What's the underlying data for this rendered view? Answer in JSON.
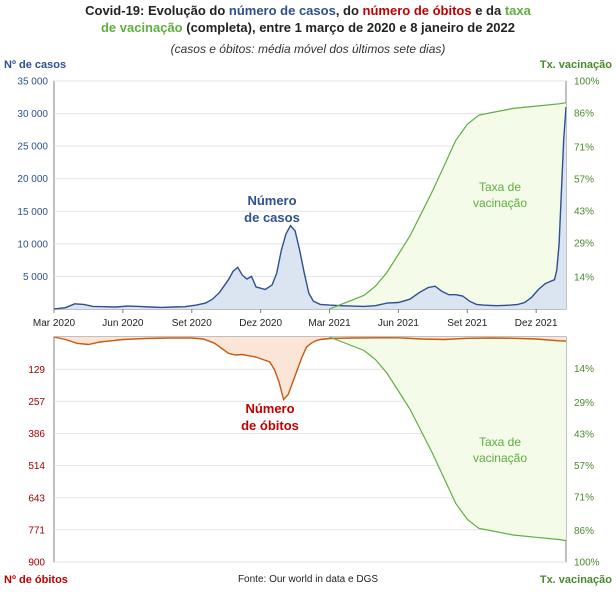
{
  "title": {
    "line1_a": "Covid-19: Evolução do ",
    "line1_b": "número de casos",
    "line1_c": ", do ",
    "line1_d": "número de óbitos",
    "line1_e": " e da ",
    "line1_f": "taxa",
    "line2_a": "de vacinação",
    "line2_b": " (completa), entre 1 março de 2020  e 8 janeiro de 2022"
  },
  "subtitle": "(casos e óbitos: média móvel dos últimos sete  dias)",
  "source": "Fonte: Our world in data e DGS",
  "colors": {
    "cases": "#2f4f8f",
    "cases_fill": "#dbe5f1",
    "deaths": "#c55a11",
    "deaths_fill": "#fbe5d6",
    "vacc": "#5fae3f",
    "vacc_fill": "#f4fbe8",
    "label_blue": "#2f4f8f",
    "label_red": "#c00000",
    "label_green": "#5fae3f"
  },
  "chart_data": [
    {
      "type": "area",
      "ylabel": "Nº de casos",
      "y2label": "Tx. vacinação",
      "yticks": [
        "5 000",
        "10 000",
        "15 000",
        "20 000",
        "25 000",
        "30 000",
        "35 000"
      ],
      "ytick_values": [
        5000,
        10000,
        15000,
        20000,
        25000,
        30000,
        35000
      ],
      "ylim": [
        0,
        35000
      ],
      "y2ticks": [
        "14%",
        "29%",
        "43%",
        "57%",
        "71%",
        "86%",
        "100%"
      ],
      "y2tick_values": [
        14,
        29,
        43,
        57,
        71,
        86,
        100
      ],
      "y2lim": [
        0,
        100
      ],
      "xticks": [
        "Mar 2020",
        "Jun 2020",
        "Set 2020",
        "Dez 2020",
        "Mar 2021",
        "Jun 2021",
        "Set 2021",
        "Dez 2021"
      ],
      "xtick_months": [
        0,
        3,
        6,
        9,
        12,
        15,
        18,
        21
      ],
      "xlim_months": [
        0,
        22.3
      ],
      "annotations": [
        {
          "text": [
            "Número",
            "de casos"
          ],
          "color": "label_blue"
        },
        {
          "text": [
            "Taxa de",
            "vacinação"
          ],
          "color": "label_green"
        }
      ],
      "series": [
        {
          "name": "Número de casos",
          "x_month": [
            0,
            0.5,
            0.9,
            1.3,
            1.7,
            2.2,
            2.7,
            3.2,
            3.7,
            4.2,
            4.7,
            5.2,
            5.7,
            6.2,
            6.6,
            6.9,
            7.2,
            7.4,
            7.6,
            7.8,
            8.0,
            8.2,
            8.4,
            8.6,
            8.8,
            9.0,
            9.2,
            9.5,
            9.7,
            9.9,
            10.1,
            10.3,
            10.5,
            10.7,
            10.9,
            11.1,
            11.3,
            11.6,
            12.0,
            12.5,
            13.0,
            13.5,
            14.0,
            14.5,
            15.0,
            15.5,
            15.9,
            16.3,
            16.6,
            16.9,
            17.2,
            17.5,
            17.8,
            18.1,
            18.4,
            18.7,
            19.0,
            19.3,
            19.6,
            19.9,
            20.2,
            20.5,
            20.8,
            21.1,
            21.4,
            21.6,
            21.8,
            21.9,
            22.0,
            22.1,
            22.2,
            22.3
          ],
          "values": [
            0,
            200,
            800,
            700,
            400,
            350,
            300,
            450,
            400,
            300,
            250,
            300,
            350,
            600,
            900,
            1500,
            2500,
            3500,
            4500,
            5800,
            6400,
            5200,
            4600,
            5000,
            3400,
            3200,
            3000,
            3700,
            5500,
            9000,
            11500,
            12800,
            12000,
            9000,
            5500,
            2400,
            1200,
            700,
            600,
            500,
            450,
            400,
            500,
            900,
            1000,
            1500,
            2500,
            3300,
            3500,
            2700,
            2200,
            2200,
            2000,
            1200,
            700,
            600,
            550,
            500,
            550,
            600,
            700,
            1000,
            1800,
            3000,
            3900,
            4200,
            4500,
            6000,
            10000,
            18000,
            26000,
            31000
          ]
        },
        {
          "name": "Taxa de vacinação",
          "x_month": [
            12.0,
            12.5,
            13.0,
            13.5,
            14.0,
            14.5,
            15.0,
            15.5,
            16.0,
            16.5,
            17.0,
            17.5,
            18.0,
            18.5,
            19.0,
            20.0,
            21.0,
            22.0,
            22.3
          ],
          "values": [
            0,
            2,
            4,
            6,
            10,
            16,
            24,
            32,
            42,
            52,
            63,
            74,
            81,
            85,
            86,
            88,
            89,
            90,
            90.5
          ]
        }
      ]
    },
    {
      "type": "area",
      "ylabel": "Nº de óbitos",
      "y2label": "Tx. vacinação",
      "yticks": [
        "129",
        "257",
        "386",
        "514",
        "643",
        "771",
        "900"
      ],
      "ytick_values": [
        129,
        257,
        386,
        514,
        643,
        771,
        900
      ],
      "ylim": [
        0,
        900
      ],
      "inverted": true,
      "y2ticks": [
        "14%",
        "29%",
        "43%",
        "57%",
        "71%",
        "86%",
        "100%"
      ],
      "y2tick_values": [
        14,
        29,
        43,
        57,
        71,
        86,
        100
      ],
      "y2lim": [
        0,
        100
      ],
      "xlim_months": [
        0,
        22.3
      ],
      "annotations": [
        {
          "text": [
            "Número",
            "de óbitos"
          ],
          "color": "label_red"
        },
        {
          "text": [
            "Taxa de",
            "vacinação"
          ],
          "color": "label_green"
        }
      ],
      "series": [
        {
          "name": "Número de óbitos",
          "x_month": [
            0,
            0.5,
            1.0,
            1.5,
            2.0,
            2.5,
            3.0,
            4.0,
            5.0,
            6.0,
            6.5,
            7.0,
            7.3,
            7.6,
            7.9,
            8.2,
            8.5,
            8.8,
            9.1,
            9.4,
            9.6,
            9.8,
            10.0,
            10.2,
            10.4,
            10.6,
            10.8,
            11.0,
            11.2,
            11.4,
            11.6,
            11.8,
            12.0,
            12.5,
            13.0,
            14.0,
            15.0,
            16.0,
            17.0,
            18.0,
            19.0,
            20.0,
            21.0,
            22.0,
            22.3
          ],
          "values": [
            0,
            10,
            25,
            30,
            20,
            15,
            10,
            6,
            4,
            4,
            8,
            25,
            45,
            65,
            72,
            70,
            75,
            80,
            90,
            100,
            130,
            180,
            250,
            230,
            180,
            130,
            80,
            40,
            25,
            15,
            10,
            8,
            6,
            5,
            4,
            3,
            3,
            8,
            10,
            5,
            4,
            5,
            8,
            15,
            16
          ]
        },
        {
          "name": "Taxa de vacinação",
          "x_month": [
            12.0,
            12.5,
            13.0,
            13.5,
            14.0,
            14.5,
            15.0,
            15.5,
            16.0,
            16.5,
            17.0,
            17.5,
            18.0,
            18.5,
            19.0,
            20.0,
            21.0,
            22.0,
            22.3
          ],
          "values": [
            0,
            2,
            4,
            6,
            10,
            16,
            24,
            32,
            42,
            52,
            63,
            74,
            81,
            85,
            86,
            88,
            89,
            90,
            90.5
          ]
        }
      ]
    }
  ]
}
